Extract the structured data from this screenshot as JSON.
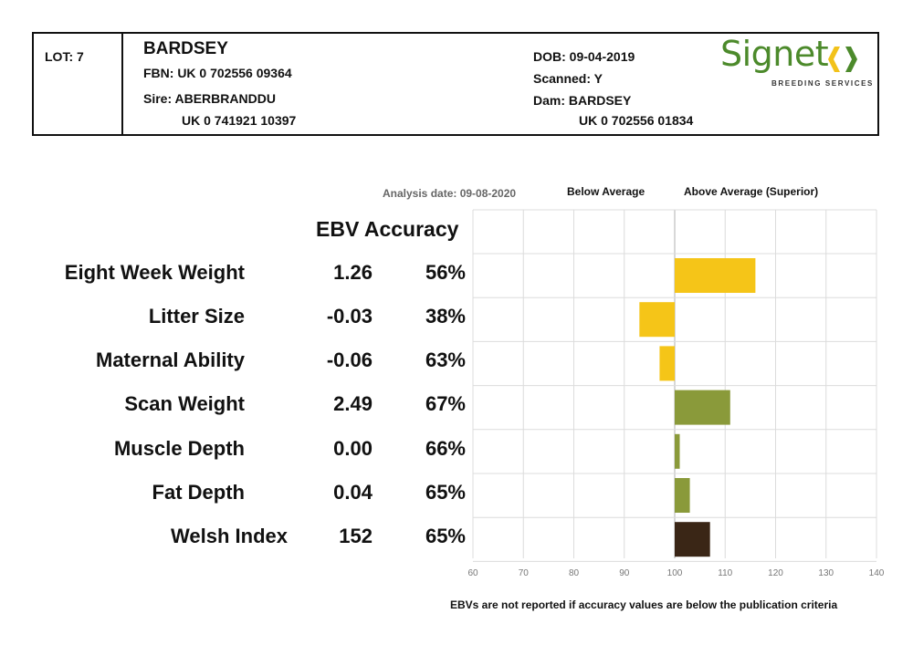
{
  "header": {
    "lot": "LOT: 7",
    "name": "BARDSEY",
    "fbn": "FBN: UK 0 702556 09364",
    "sire": "Sire: ABERBRANDDU",
    "sire_id": "UK 0 741921 10397",
    "dob": "DOB: 09-04-2019",
    "scanned": "Scanned: Y",
    "dam": "Dam: BARDSEY",
    "dam_id": "UK 0 702556 01834",
    "logo_word": "Signet",
    "logo_sub": "BREEDING SERVICES",
    "logo_colors": {
      "green": "#4c8a2b",
      "yellow": "#f2c21a"
    }
  },
  "legend": {
    "analysis_date": "Analysis date: 09-08-2020",
    "below": "Below Average",
    "above": "Above Average (Superior)"
  },
  "columns": {
    "ebv_accuracy": "EBV Accuracy"
  },
  "traits": [
    {
      "name": "Eight Week Weight",
      "ebv": "1.26",
      "accuracy": "56%"
    },
    {
      "name": "Litter Size",
      "ebv": "-0.03",
      "accuracy": "38%"
    },
    {
      "name": "Maternal Ability",
      "ebv": "-0.06",
      "accuracy": "63%"
    },
    {
      "name": "Scan Weight",
      "ebv": "2.49",
      "accuracy": "67%"
    },
    {
      "name": "Muscle Depth",
      "ebv": "0.00",
      "accuracy": "66%"
    },
    {
      "name": "Fat Depth",
      "ebv": "0.04",
      "accuracy": "65%"
    },
    {
      "name": "Welsh Index",
      "ebv": "152",
      "accuracy": "65%"
    }
  ],
  "footnote": "EBVs are not reported if accuracy values are below the publication criteria",
  "chart_data": {
    "type": "bar",
    "orientation": "horizontal",
    "baseline": 100,
    "categories": [
      "Eight Week Weight",
      "Litter Size",
      "Maternal Ability",
      "Scan Weight",
      "Muscle Depth",
      "Fat Depth",
      "Welsh Index"
    ],
    "values": [
      116,
      93,
      97,
      111,
      101,
      103,
      107
    ],
    "colors": [
      "#f5c518",
      "#f5c518",
      "#f5c518",
      "#8a9a3a",
      "#8a9a3a",
      "#8a9a3a",
      "#3a2616"
    ],
    "xlim": [
      60,
      140
    ],
    "xticks": [
      "60",
      "70",
      "80",
      "90",
      "100",
      "110",
      "120",
      "130",
      "140"
    ],
    "grid": true
  }
}
